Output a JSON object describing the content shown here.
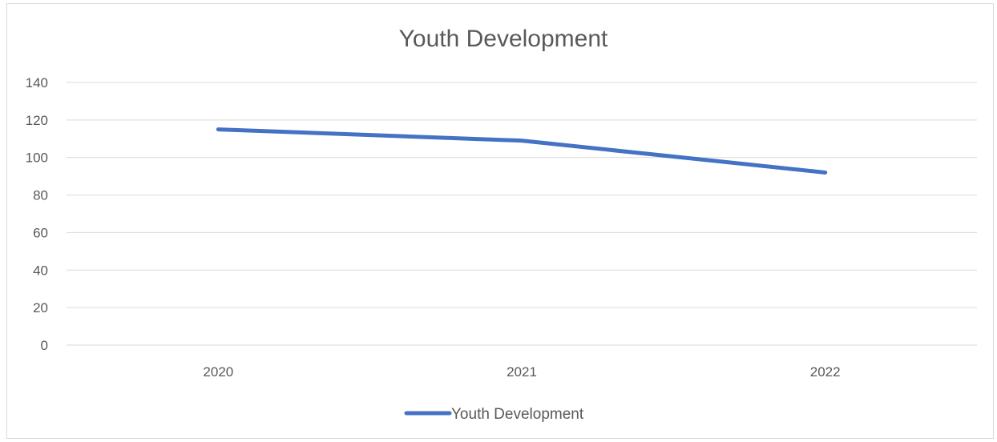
{
  "chart_data": {
    "type": "line",
    "title": "Youth Development",
    "categories": [
      "2020",
      "2021",
      "2022"
    ],
    "series": [
      {
        "name": "Youth Development",
        "values": [
          115,
          109,
          92
        ],
        "color": "#4472C4"
      }
    ],
    "ylim": [
      0,
      140
    ],
    "yticks": [
      0,
      20,
      40,
      60,
      80,
      100,
      120,
      140
    ],
    "xlabel": "",
    "ylabel": "",
    "grid": true,
    "legend": "bottom"
  }
}
